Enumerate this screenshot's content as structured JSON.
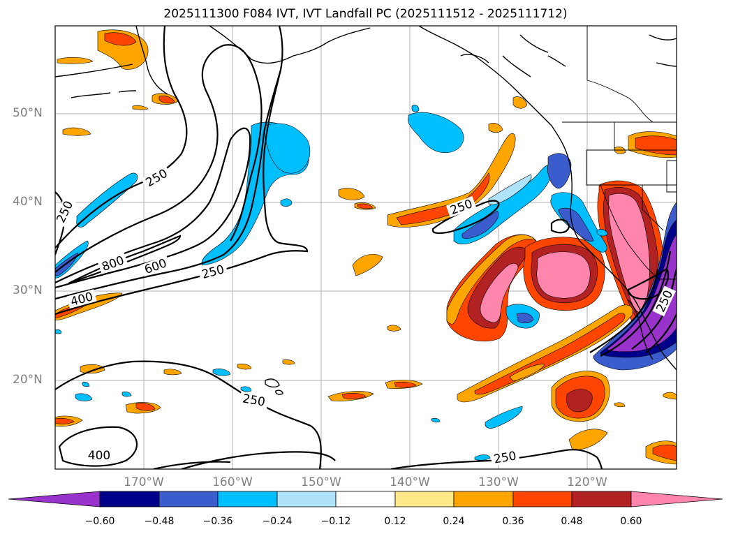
{
  "title": "2025111300 F084 IVT, IVT Landfall PC (2025111512 - 2025111712)",
  "lat_labels": [
    "50°N",
    "40°N",
    "30°N",
    "20°N"
  ],
  "lon_labels": [
    "170°W",
    "160°W",
    "150°W",
    "140°W",
    "130°W",
    "120°W"
  ],
  "contour_labels": {
    "c250_a": "250",
    "c250_b": "250",
    "c250_c": "250",
    "c250_d": "250",
    "c250_e": "250",
    "c250_f": "250",
    "c250_g": "250",
    "c400_a": "400",
    "c400_b": "400",
    "c600": "600",
    "c800": "800"
  },
  "colorbar": {
    "ticks": [
      "−0.60",
      "−0.48",
      "−0.36",
      "−0.24",
      "−0.12",
      "0.12",
      "0.24",
      "0.36",
      "0.48",
      "0.60"
    ],
    "colors": [
      "#9933cc",
      "#00008b",
      "#3a5ccc",
      "#00bfff",
      "#aee3fb",
      "#ffffff",
      "#ffe88a",
      "#ffa500",
      "#ff4500",
      "#b22222",
      "#ff85ad",
      "#ff85ad"
    ]
  },
  "colors": {
    "purple": "#9933cc",
    "navy": "#00008b",
    "royal": "#3a5ccc",
    "sky": "#00bfff",
    "lightblue": "#aee3fb",
    "yellow": "#ffe88a",
    "orange": "#ffa500",
    "redorange": "#ff4500",
    "firebrick": "#b22222",
    "pink": "#ff85ad"
  }
}
